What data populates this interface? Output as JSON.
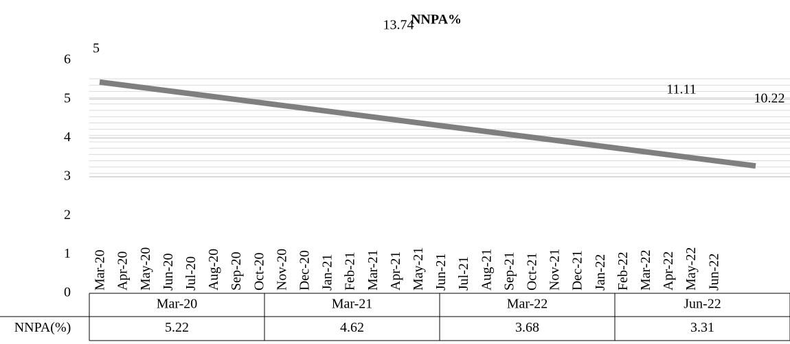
{
  "chart_data": {
    "type": "line",
    "title": "NNPA%",
    "ylim": [
      0,
      6
    ],
    "yticks": [
      0,
      1,
      2,
      3,
      4,
      5,
      6
    ],
    "categories": [
      "Mar-20",
      "Apr-20",
      "May-20",
      "Jun-20",
      "Jul-20",
      "Aug-20",
      "Sep-20",
      "Oct-20",
      "Nov-20",
      "Dec-20",
      "Jan-21",
      "Feb-21",
      "Mar-21",
      "Apr-21",
      "May-21",
      "Jun-21",
      "Jul-21",
      "Aug-21",
      "Sep-21",
      "Oct-21",
      "Nov-21",
      "Dec-21",
      "Jan-22",
      "Feb-22",
      "Mar-22",
      "Apr-22",
      "May-22",
      "Jun-22"
    ],
    "trendline": {
      "color": "#7f7f7f",
      "values": [
        5.44,
        3.28
      ]
    },
    "annotations": [
      "5",
      "13.74",
      "11.11",
      "10.22"
    ],
    "table": {
      "row_label": "NNPA(%)",
      "categories": [
        "Mar-20",
        "Mar-21",
        "Mar-22",
        "Jun-22"
      ],
      "values": [
        5.22,
        4.62,
        3.68,
        3.31
      ]
    }
  }
}
